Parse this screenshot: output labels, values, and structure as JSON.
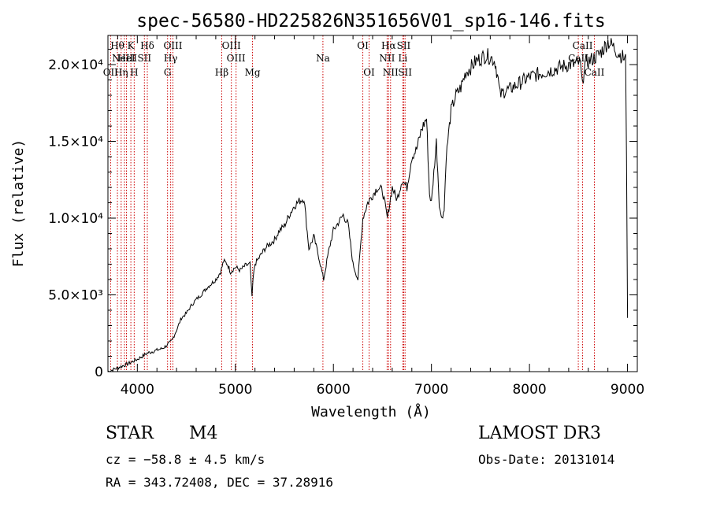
{
  "chart_data": {
    "type": "line",
    "title": "spec-56580-HD225826N351656V01_sp16-146.fits",
    "xlabel": "Wavelength (Å)",
    "ylabel": "Flux (relative)",
    "xlim": [
      3700,
      9100
    ],
    "ylim": [
      0,
      21900
    ],
    "x_ticks": [
      4000,
      5000,
      6000,
      7000,
      8000,
      9000
    ],
    "x_tick_labels": [
      "4000",
      "5000",
      "6000",
      "7000",
      "8000",
      "9000"
    ],
    "y_ticks": [
      0,
      5000,
      10000,
      15000,
      20000
    ],
    "y_tick_labels": [
      "0",
      "5.0×10³",
      "1.0×10⁴",
      "1.5×10⁴",
      "2.0×10⁴"
    ],
    "grid": false,
    "series": [
      {
        "name": "flux",
        "x": [
          3700,
          3800,
          3900,
          4000,
          4050,
          4100,
          4150,
          4200,
          4250,
          4300,
          4350,
          4400,
          4450,
          4500,
          4550,
          4600,
          4650,
          4700,
          4750,
          4800,
          4850,
          4880,
          4920,
          4950,
          5000,
          5050,
          5100,
          5150,
          5170,
          5180,
          5200,
          5250,
          5300,
          5350,
          5400,
          5450,
          5500,
          5550,
          5600,
          5650,
          5700,
          5750,
          5800,
          5850,
          5900,
          5950,
          6000,
          6050,
          6100,
          6150,
          6200,
          6250,
          6300,
          6350,
          6400,
          6450,
          6500,
          6550,
          6600,
          6650,
          6700,
          6750,
          6800,
          6850,
          6900,
          6950,
          6980,
          7000,
          7050,
          7080,
          7100,
          7130,
          7150,
          7200,
          7250,
          7300,
          7350,
          7400,
          7450,
          7500,
          7550,
          7600,
          7650,
          7680,
          7700,
          7750,
          7800,
          7850,
          7900,
          7950,
          8000,
          8050,
          8100,
          8150,
          8200,
          8250,
          8300,
          8350,
          8400,
          8450,
          8500,
          8520,
          8540,
          8560,
          8600,
          8650,
          8700,
          8750,
          8800,
          8850,
          8900,
          8950,
          8980,
          8990,
          9000
        ],
        "y": [
          0,
          250,
          500,
          800,
          1000,
          1200,
          1300,
          1400,
          1500,
          1700,
          2000,
          2700,
          3500,
          3800,
          4300,
          4700,
          5000,
          5400,
          5700,
          6000,
          6500,
          7200,
          7000,
          6500,
          6800,
          6600,
          6900,
          7000,
          4800,
          6000,
          7000,
          7500,
          8000,
          8300,
          8600,
          9200,
          9500,
          10200,
          10800,
          11100,
          11300,
          8000,
          8800,
          7500,
          6000,
          7800,
          9200,
          9700,
          10200,
          9600,
          7000,
          6000,
          10000,
          11000,
          11500,
          12000,
          11800,
          10000,
          12000,
          11200,
          12500,
          12000,
          14000,
          14500,
          15800,
          16500,
          11600,
          11000,
          15000,
          11000,
          10000,
          10500,
          14000,
          17000,
          18000,
          18500,
          19500,
          19800,
          20200,
          20400,
          20600,
          20500,
          20200,
          19000,
          18000,
          18300,
          18400,
          18600,
          18800,
          19000,
          19200,
          19300,
          19400,
          19500,
          19600,
          19700,
          19800,
          19900,
          20000,
          20000,
          20100,
          20000,
          18500,
          20100,
          20200,
          20400,
          20600,
          21000,
          21500,
          21200,
          20800,
          20500,
          20300,
          14000,
          3500
        ]
      }
    ],
    "line_markers": [
      {
        "label": "Hθ",
        "wavelength": 3797,
        "row": 1
      },
      {
        "label": "OII",
        "wavelength": 3727,
        "row": 3
      },
      {
        "label": "Hη",
        "wavelength": 3835,
        "row": 3
      },
      {
        "label": "NeIII",
        "wavelength": 3869,
        "row": 2
      },
      {
        "label": "K",
        "wavelength": 3934,
        "row": 1
      },
      {
        "label": "HeI",
        "wavelength": 3889,
        "row": 2
      },
      {
        "label": "H",
        "wavelength": 3968,
        "row": 3
      },
      {
        "label": "SII",
        "wavelength": 4072,
        "row": 2
      },
      {
        "label": "Hδ",
        "wavelength": 4102,
        "row": 1
      },
      {
        "label": "OIII",
        "wavelength": 4363,
        "row": 1
      },
      {
        "label": "Hγ",
        "wavelength": 4340,
        "row": 2
      },
      {
        "label": "G",
        "wavelength": 4308,
        "row": 3
      },
      {
        "label": "OIII",
        "wavelength": 4959,
        "row": 1
      },
      {
        "label": "OIII",
        "wavelength": 5007,
        "row": 2
      },
      {
        "label": "Hβ",
        "wavelength": 4861,
        "row": 3
      },
      {
        "label": "Mg",
        "wavelength": 5175,
        "row": 3
      },
      {
        "label": "Na",
        "wavelength": 5893,
        "row": 2
      },
      {
        "label": "OI",
        "wavelength": 6300,
        "row": 1
      },
      {
        "label": "OI",
        "wavelength": 6364,
        "row": 3
      },
      {
        "label": "Hα",
        "wavelength": 6563,
        "row": 1
      },
      {
        "label": "NII",
        "wavelength": 6548,
        "row": 2
      },
      {
        "label": "NII",
        "wavelength": 6583,
        "row": 3
      },
      {
        "label": "SII",
        "wavelength": 6717,
        "row": 1
      },
      {
        "label": "Li",
        "wavelength": 6708,
        "row": 2
      },
      {
        "label": "SII",
        "wavelength": 6731,
        "row": 3
      },
      {
        "label": "CaII",
        "wavelength": 8542,
        "row": 1
      },
      {
        "label": "CaII",
        "wavelength": 8498,
        "row": 2
      },
      {
        "label": "CaII",
        "wavelength": 8662,
        "row": 3
      }
    ],
    "marker_color": "#cc0000"
  },
  "info": {
    "object_type": "STAR",
    "subclass": "M4",
    "redshift": "cz = −58.8 ± 4.5 km/s",
    "coords": "RA = 343.72408, DEC =  37.28916",
    "survey": "LAMOST DR3",
    "obs_date": "Obs-Date: 20131014"
  }
}
